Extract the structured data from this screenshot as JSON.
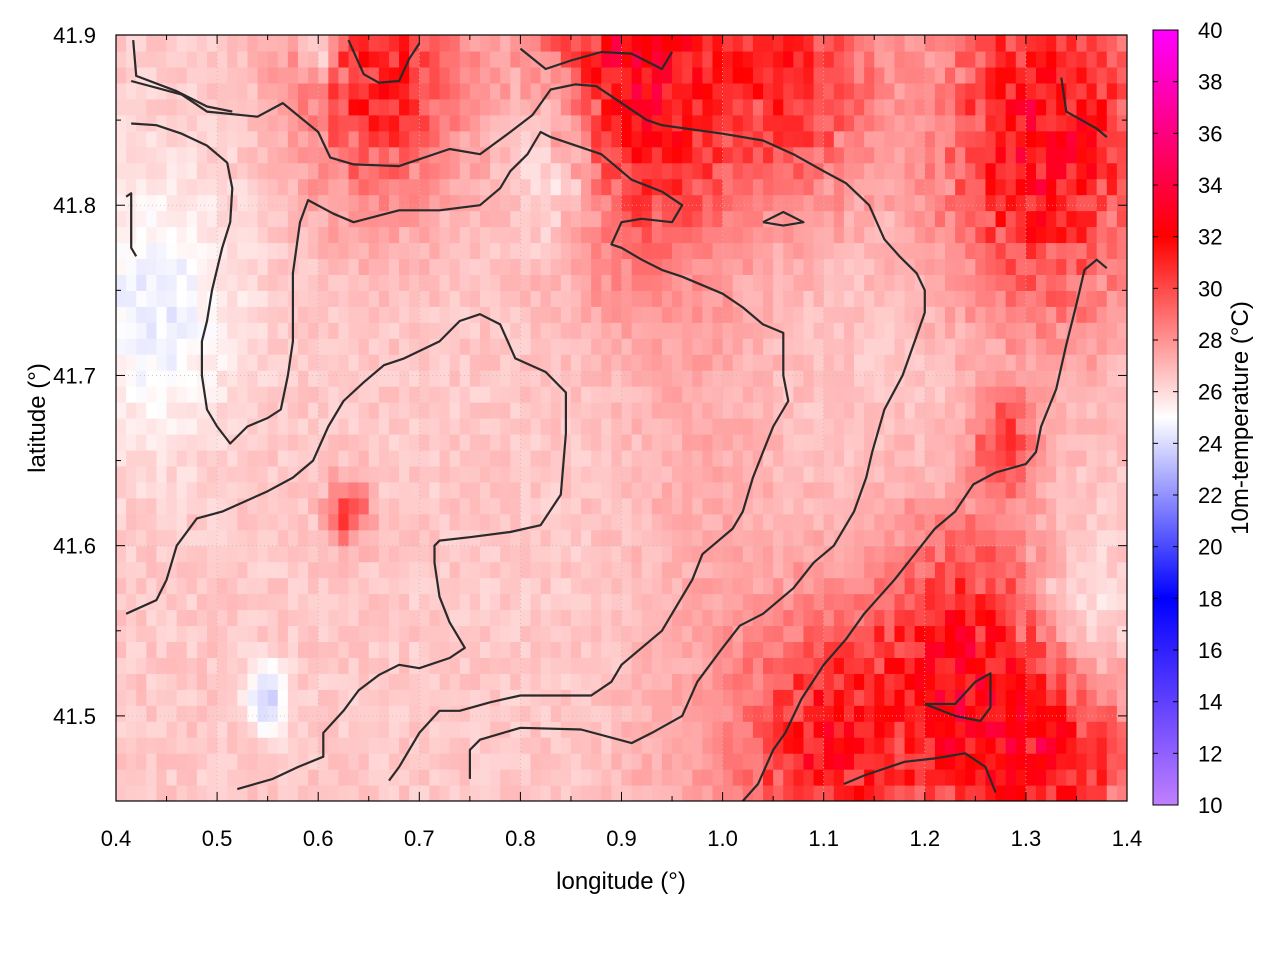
{
  "chart_data": {
    "type": "heatmap",
    "xlabel": "longitude (°)",
    "ylabel": "latitude (°)",
    "xlim": [
      0.4,
      1.4
    ],
    "ylim": [
      41.45,
      41.9
    ],
    "x_ticks": [
      "0.4",
      "0.5",
      "0.6",
      "0.7",
      "0.8",
      "0.9",
      "1.0",
      "1.1",
      "1.2",
      "1.3",
      "1.4"
    ],
    "y_ticks": [
      "41.5",
      "41.6",
      "41.7",
      "41.8",
      "41.9"
    ],
    "grid": true,
    "colorbar": {
      "label": "10m-temperature (°C)",
      "range": [
        10,
        40
      ],
      "ticks": [
        "10",
        "12",
        "14",
        "16",
        "18",
        "20",
        "22",
        "24",
        "26",
        "28",
        "30",
        "32",
        "34",
        "36",
        "38",
        "40"
      ],
      "colormap": [
        {
          "value": 10,
          "color": "#c080ff"
        },
        {
          "value": 18,
          "color": "#0000ff"
        },
        {
          "value": 25,
          "color": "#ffffff"
        },
        {
          "value": 32,
          "color": "#ff0000"
        },
        {
          "value": 40,
          "color": "#ff00ff"
        }
      ]
    },
    "field_features": {
      "base_temperature": 26.5,
      "warm_patches": [
        {
          "lon": 0.92,
          "lat": 41.88,
          "temp": 33,
          "radius": 0.1
        },
        {
          "lon": 0.66,
          "lat": 41.88,
          "temp": 32,
          "radius": 0.08
        },
        {
          "lon": 1.32,
          "lat": 41.84,
          "temp": 33.5,
          "radius": 0.1
        },
        {
          "lon": 1.08,
          "lat": 41.88,
          "temp": 31,
          "radius": 0.08
        },
        {
          "lon": 1.24,
          "lat": 41.52,
          "temp": 33,
          "radius": 0.09
        },
        {
          "lon": 1.1,
          "lat": 41.48,
          "temp": 32,
          "radius": 0.08
        },
        {
          "lon": 1.34,
          "lat": 41.47,
          "temp": 31.5,
          "radius": 0.07
        },
        {
          "lon": 0.63,
          "lat": 41.62,
          "temp": 31,
          "radius": 0.02
        },
        {
          "lon": 1.28,
          "lat": 41.66,
          "temp": 30.5,
          "radius": 0.03
        }
      ],
      "cool_patches": [
        {
          "lon": 0.84,
          "lat": 41.83,
          "temp": 24,
          "radius": 0.05
        },
        {
          "lon": 0.44,
          "lat": 41.74,
          "temp": 24.5,
          "radius": 0.08
        },
        {
          "lon": 0.55,
          "lat": 41.51,
          "temp": 23.5,
          "radius": 0.02
        },
        {
          "lon": 0.6,
          "lat": 41.89,
          "temp": 24,
          "radius": 0.02
        },
        {
          "lon": 1.35,
          "lat": 41.55,
          "temp": 24.5,
          "radius": 0.05
        }
      ],
      "warm_band": [
        {
          "lon": 0.9,
          "lat": 41.85
        },
        {
          "lon": 0.98,
          "lat": 41.7
        },
        {
          "lon": 1.0,
          "lat": 41.55
        },
        {
          "lon": 0.96,
          "lat": 41.45
        }
      ]
    },
    "contours": [
      {
        "points": [
          [
            0.415,
            41.873
          ],
          [
            0.465,
            41.865
          ],
          [
            0.49,
            41.855
          ],
          [
            0.54,
            41.852
          ],
          [
            0.565,
            41.86
          ],
          [
            0.6,
            41.843
          ],
          [
            0.612,
            41.828
          ],
          [
            0.635,
            41.824
          ],
          [
            0.68,
            41.823
          ],
          [
            0.73,
            41.833
          ],
          [
            0.76,
            41.83
          ],
          [
            0.79,
            41.843
          ],
          [
            0.812,
            41.853
          ],
          [
            0.83,
            41.868
          ],
          [
            0.854,
            41.871
          ],
          [
            0.875,
            41.87
          ],
          [
            0.9,
            41.86
          ],
          [
            0.925,
            41.85
          ],
          [
            0.94,
            41.847
          ],
          [
            1.0,
            41.842
          ],
          [
            1.04,
            41.838
          ],
          [
            1.07,
            41.83
          ],
          [
            1.1,
            41.82
          ],
          [
            1.122,
            41.813
          ],
          [
            1.145,
            41.8
          ],
          [
            1.16,
            41.78
          ],
          [
            1.175,
            41.77
          ],
          [
            1.192,
            41.76
          ],
          [
            1.2,
            41.75
          ],
          [
            1.2,
            41.737
          ],
          [
            1.19,
            41.72
          ],
          [
            1.178,
            41.7
          ],
          [
            1.16,
            41.68
          ],
          [
            1.148,
            41.655
          ],
          [
            1.142,
            41.64
          ],
          [
            1.13,
            41.62
          ],
          [
            1.11,
            41.6
          ],
          [
            1.09,
            41.59
          ],
          [
            1.07,
            41.575
          ],
          [
            1.05,
            41.565
          ],
          [
            1.04,
            41.56
          ],
          [
            1.017,
            41.553
          ],
          [
            1.0,
            41.54
          ],
          [
            0.975,
            41.52
          ],
          [
            0.96,
            41.5
          ],
          [
            0.93,
            41.49
          ],
          [
            0.91,
            41.484
          ],
          [
            0.86,
            41.492
          ],
          [
            0.8,
            41.493
          ],
          [
            0.76,
            41.486
          ],
          [
            0.75,
            41.48
          ],
          [
            0.75,
            41.463
          ]
        ]
      },
      {
        "points": [
          [
            0.415,
            41.848
          ],
          [
            0.44,
            41.847
          ],
          [
            0.465,
            41.842
          ],
          [
            0.49,
            41.835
          ],
          [
            0.51,
            41.825
          ],
          [
            0.515,
            41.81
          ],
          [
            0.513,
            41.79
          ],
          [
            0.505,
            41.775
          ],
          [
            0.495,
            41.75
          ],
          [
            0.49,
            41.732
          ],
          [
            0.485,
            41.72
          ],
          [
            0.485,
            41.7
          ],
          [
            0.49,
            41.68
          ],
          [
            0.5,
            41.67
          ],
          [
            0.513,
            41.66
          ],
          [
            0.53,
            41.67
          ],
          [
            0.55,
            41.675
          ],
          [
            0.563,
            41.68
          ],
          [
            0.57,
            41.7
          ],
          [
            0.575,
            41.72
          ],
          [
            0.575,
            41.76
          ],
          [
            0.582,
            41.79
          ],
          [
            0.59,
            41.803
          ],
          [
            0.615,
            41.795
          ],
          [
            0.635,
            41.79
          ],
          [
            0.68,
            41.797
          ],
          [
            0.72,
            41.797
          ],
          [
            0.76,
            41.8
          ],
          [
            0.78,
            41.81
          ],
          [
            0.79,
            41.82
          ],
          [
            0.807,
            41.83
          ],
          [
            0.82,
            41.843
          ],
          [
            0.83,
            41.84
          ],
          [
            0.88,
            41.83
          ],
          [
            0.91,
            41.815
          ],
          [
            0.94,
            41.808
          ],
          [
            0.96,
            41.8
          ],
          [
            0.95,
            41.79
          ],
          [
            0.92,
            41.792
          ],
          [
            0.9,
            41.79
          ],
          [
            0.89,
            41.777
          ],
          [
            0.9,
            41.775
          ],
          [
            0.92,
            41.768
          ],
          [
            0.94,
            41.762
          ],
          [
            0.96,
            41.758
          ],
          [
            1.0,
            41.748
          ],
          [
            1.02,
            41.74
          ],
          [
            1.04,
            41.73
          ],
          [
            1.06,
            41.725
          ],
          [
            1.06,
            41.7
          ],
          [
            1.065,
            41.685
          ],
          [
            1.05,
            41.67
          ],
          [
            1.04,
            41.655
          ],
          [
            1.03,
            41.64
          ],
          [
            1.02,
            41.62
          ],
          [
            1.01,
            41.61
          ],
          [
            0.99,
            41.6
          ],
          [
            0.98,
            41.595
          ],
          [
            0.97,
            41.58
          ],
          [
            0.955,
            41.565
          ],
          [
            0.94,
            41.55
          ],
          [
            0.92,
            41.54
          ],
          [
            0.9,
            41.53
          ],
          [
            0.89,
            41.52
          ],
          [
            0.87,
            41.512
          ],
          [
            0.85,
            41.512
          ],
          [
            0.8,
            41.512
          ],
          [
            0.77,
            41.508
          ],
          [
            0.74,
            41.503
          ],
          [
            0.72,
            41.503
          ],
          [
            0.7,
            41.49
          ],
          [
            0.68,
            41.47
          ],
          [
            0.67,
            41.462
          ]
        ]
      },
      {
        "points": [
          [
            0.41,
            41.56
          ],
          [
            0.44,
            41.568
          ],
          [
            0.45,
            41.58
          ],
          [
            0.46,
            41.6
          ],
          [
            0.48,
            41.616
          ],
          [
            0.505,
            41.62
          ],
          [
            0.55,
            41.632
          ],
          [
            0.575,
            41.64
          ],
          [
            0.595,
            41.65
          ],
          [
            0.61,
            41.67
          ],
          [
            0.625,
            41.685
          ],
          [
            0.645,
            41.696
          ],
          [
            0.665,
            41.706
          ],
          [
            0.685,
            41.71
          ],
          [
            0.72,
            41.72
          ],
          [
            0.74,
            41.732
          ],
          [
            0.76,
            41.736
          ],
          [
            0.78,
            41.73
          ],
          [
            0.795,
            41.71
          ],
          [
            0.825,
            41.702
          ],
          [
            0.845,
            41.69
          ],
          [
            0.845,
            41.666
          ],
          [
            0.84,
            41.63
          ],
          [
            0.82,
            41.612
          ],
          [
            0.79,
            41.608
          ],
          [
            0.75,
            41.605
          ],
          [
            0.72,
            41.603
          ],
          [
            0.715,
            41.6
          ],
          [
            0.715,
            41.59
          ],
          [
            0.72,
            41.57
          ],
          [
            0.73,
            41.555
          ],
          [
            0.745,
            41.54
          ],
          [
            0.73,
            41.534
          ],
          [
            0.7,
            41.528
          ],
          [
            0.68,
            41.53
          ],
          [
            0.66,
            41.524
          ],
          [
            0.64,
            41.515
          ],
          [
            0.625,
            41.503
          ],
          [
            0.605,
            41.49
          ],
          [
            0.605,
            41.476
          ],
          [
            0.58,
            41.47
          ],
          [
            0.555,
            41.463
          ],
          [
            0.52,
            41.457
          ]
        ]
      },
      {
        "points": [
          [
            1.02,
            41.45
          ],
          [
            1.035,
            41.46
          ],
          [
            1.05,
            41.48
          ],
          [
            1.062,
            41.49
          ],
          [
            1.078,
            41.51
          ],
          [
            1.1,
            41.53
          ],
          [
            1.122,
            41.545
          ],
          [
            1.14,
            41.56
          ],
          [
            1.17,
            41.58
          ],
          [
            1.19,
            41.595
          ],
          [
            1.21,
            41.61
          ],
          [
            1.23,
            41.62
          ],
          [
            1.248,
            41.636
          ],
          [
            1.27,
            41.643
          ],
          [
            1.3,
            41.648
          ],
          [
            1.31,
            41.655
          ],
          [
            1.315,
            41.67
          ],
          [
            1.33,
            41.692
          ],
          [
            1.34,
            41.718
          ],
          [
            1.35,
            41.742
          ],
          [
            1.358,
            41.762
          ],
          [
            1.37,
            41.768
          ],
          [
            1.38,
            41.763
          ]
        ]
      },
      {
        "points": [
          [
            0.417,
            41.897
          ],
          [
            0.42,
            41.876
          ],
          [
            0.46,
            41.867
          ],
          [
            0.49,
            41.858
          ],
          [
            0.515,
            41.855
          ]
        ]
      },
      {
        "points": [
          [
            0.63,
            41.897
          ],
          [
            0.645,
            41.877
          ],
          [
            0.66,
            41.872
          ],
          [
            0.68,
            41.873
          ],
          [
            0.69,
            41.886
          ],
          [
            0.7,
            41.895
          ]
        ]
      },
      {
        "points": [
          [
            0.8,
            41.892
          ],
          [
            0.825,
            41.88
          ],
          [
            0.85,
            41.885
          ],
          [
            0.88,
            41.89
          ],
          [
            0.91,
            41.889
          ],
          [
            0.94,
            41.88
          ],
          [
            0.95,
            41.89
          ]
        ]
      },
      {
        "points": [
          [
            1.335,
            41.875
          ],
          [
            1.34,
            41.855
          ],
          [
            1.37,
            41.845
          ],
          [
            1.38,
            41.84
          ]
        ]
      },
      {
        "points": [
          [
            1.04,
            41.79
          ],
          [
            1.06,
            41.788
          ],
          [
            1.08,
            41.79
          ],
          [
            1.06,
            41.796
          ],
          [
            1.04,
            41.79
          ]
        ]
      },
      {
        "points": [
          [
            0.41,
            41.805
          ],
          [
            0.415,
            41.807
          ],
          [
            0.415,
            41.775
          ],
          [
            0.42,
            41.77
          ]
        ]
      },
      {
        "points": [
          [
            1.2,
            41.507
          ],
          [
            1.23,
            41.507
          ],
          [
            1.25,
            41.52
          ],
          [
            1.265,
            41.525
          ],
          [
            1.265,
            41.505
          ],
          [
            1.255,
            41.497
          ],
          [
            1.23,
            41.5
          ],
          [
            1.2,
            41.507
          ]
        ]
      },
      {
        "points": [
          [
            1.12,
            41.46
          ],
          [
            1.14,
            41.465
          ],
          [
            1.18,
            41.473
          ],
          [
            1.21,
            41.475
          ],
          [
            1.24,
            41.478
          ],
          [
            1.26,
            41.47
          ],
          [
            1.27,
            41.455
          ]
        ]
      }
    ]
  }
}
